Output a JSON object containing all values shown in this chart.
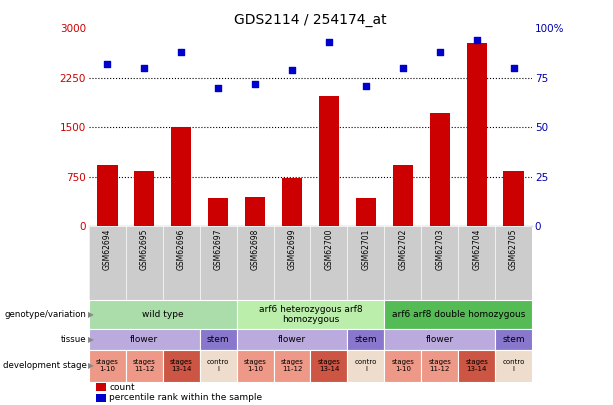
{
  "title": "GDS2114 / 254174_at",
  "samples": [
    "GSM62694",
    "GSM62695",
    "GSM62696",
    "GSM62697",
    "GSM62698",
    "GSM62699",
    "GSM62700",
    "GSM62701",
    "GSM62702",
    "GSM62703",
    "GSM62704",
    "GSM62705"
  ],
  "count_values": [
    920,
    840,
    1500,
    430,
    440,
    730,
    1980,
    430,
    920,
    1720,
    2780,
    840
  ],
  "percentile_values": [
    82,
    80,
    88,
    70,
    72,
    79,
    93,
    71,
    80,
    88,
    94,
    80
  ],
  "ylim_left": [
    0,
    3000
  ],
  "ylim_right": [
    0,
    100
  ],
  "yticks_left": [
    0,
    750,
    1500,
    2250,
    3000
  ],
  "yticks_right": [
    0,
    25,
    50,
    75,
    100
  ],
  "bar_color": "#CC0000",
  "scatter_color": "#0000CC",
  "sample_bg_color": "#CCCCCC",
  "chart_bg": "#FFFFFF",
  "genotype_groups": [
    {
      "label": "wild type",
      "start": 0,
      "end": 4,
      "color": "#AADDAA"
    },
    {
      "label": "arf6 heterozygous arf8\nhomozygous",
      "start": 4,
      "end": 8,
      "color": "#BBEEAA"
    },
    {
      "label": "arf6 arf8 double homozygous",
      "start": 8,
      "end": 12,
      "color": "#55BB55"
    }
  ],
  "tissue_groups": [
    {
      "label": "flower",
      "start": 0,
      "end": 3,
      "color": "#BBAADD"
    },
    {
      "label": "stem",
      "start": 3,
      "end": 4,
      "color": "#8877CC"
    },
    {
      "label": "flower",
      "start": 4,
      "end": 7,
      "color": "#BBAADD"
    },
    {
      "label": "stem",
      "start": 7,
      "end": 8,
      "color": "#8877CC"
    },
    {
      "label": "flower",
      "start": 8,
      "end": 11,
      "color": "#BBAADD"
    },
    {
      "label": "stem",
      "start": 11,
      "end": 12,
      "color": "#8877CC"
    }
  ],
  "dev_stage_groups": [
    {
      "label": "stages\n1-10",
      "start": 0,
      "end": 1,
      "color": "#EE9988"
    },
    {
      "label": "stages\n11-12",
      "start": 1,
      "end": 2,
      "color": "#EE9988"
    },
    {
      "label": "stages\n13-14",
      "start": 2,
      "end": 3,
      "color": "#CC5544"
    },
    {
      "label": "contro\nl",
      "start": 3,
      "end": 4,
      "color": "#EEDDCC"
    },
    {
      "label": "stages\n1-10",
      "start": 4,
      "end": 5,
      "color": "#EE9988"
    },
    {
      "label": "stages\n11-12",
      "start": 5,
      "end": 6,
      "color": "#EE9988"
    },
    {
      "label": "stages\n13-14",
      "start": 6,
      "end": 7,
      "color": "#CC5544"
    },
    {
      "label": "contro\nl",
      "start": 7,
      "end": 8,
      "color": "#EEDDCC"
    },
    {
      "label": "stages\n1-10",
      "start": 8,
      "end": 9,
      "color": "#EE9988"
    },
    {
      "label": "stages\n11-12",
      "start": 9,
      "end": 10,
      "color": "#EE9988"
    },
    {
      "label": "stages\n13-14",
      "start": 10,
      "end": 11,
      "color": "#CC5544"
    },
    {
      "label": "contro\nl",
      "start": 11,
      "end": 12,
      "color": "#EEDDCC"
    }
  ],
  "row_labels": [
    "genotype/variation",
    "tissue",
    "development stage"
  ],
  "legend_count_color": "#CC0000",
  "legend_pct_color": "#0000CC",
  "axis_left_color": "#CC0000",
  "axis_right_color": "#0000AA"
}
